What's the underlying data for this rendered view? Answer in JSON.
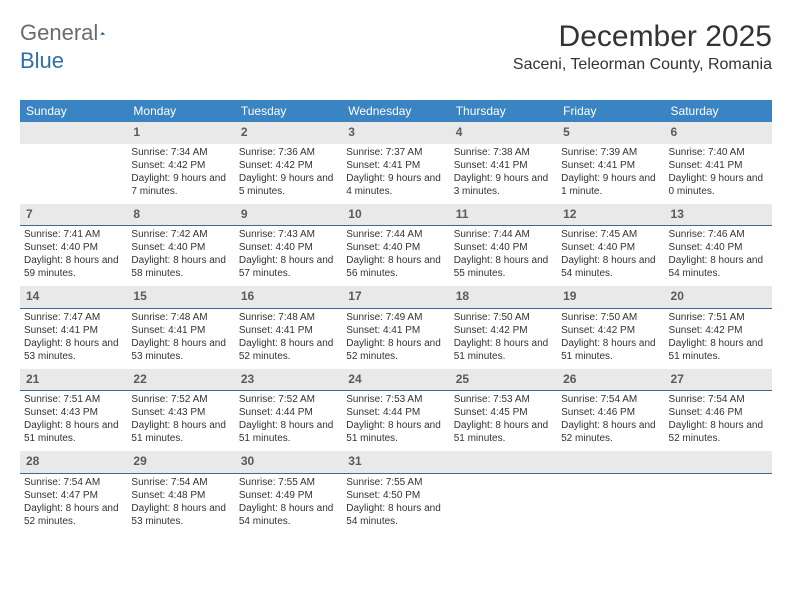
{
  "logo": {
    "text1": "General",
    "text2": "Blue"
  },
  "title": "December 2025",
  "subtitle": "Saceni, Teleorman County, Romania",
  "colors": {
    "header_bg": "#3a84c4",
    "header_fg": "#ffffff",
    "daynum_bg": "#e9e9e9",
    "rule": "#3a6a95",
    "text": "#333333",
    "logo_gray": "#6b6b6b",
    "logo_blue": "#2f6fa8",
    "page_bg": "#ffffff"
  },
  "days_of_week": [
    "Sunday",
    "Monday",
    "Tuesday",
    "Wednesday",
    "Thursday",
    "Friday",
    "Saturday"
  ],
  "weeks": [
    {
      "nums": [
        "",
        "1",
        "2",
        "3",
        "4",
        "5",
        "6"
      ],
      "cells": [
        null,
        {
          "sunrise": "7:34 AM",
          "sunset": "4:42 PM",
          "daylight": "9 hours and 7 minutes."
        },
        {
          "sunrise": "7:36 AM",
          "sunset": "4:42 PM",
          "daylight": "9 hours and 5 minutes."
        },
        {
          "sunrise": "7:37 AM",
          "sunset": "4:41 PM",
          "daylight": "9 hours and 4 minutes."
        },
        {
          "sunrise": "7:38 AM",
          "sunset": "4:41 PM",
          "daylight": "9 hours and 3 minutes."
        },
        {
          "sunrise": "7:39 AM",
          "sunset": "4:41 PM",
          "daylight": "9 hours and 1 minute."
        },
        {
          "sunrise": "7:40 AM",
          "sunset": "4:41 PM",
          "daylight": "9 hours and 0 minutes."
        }
      ]
    },
    {
      "nums": [
        "7",
        "8",
        "9",
        "10",
        "11",
        "12",
        "13"
      ],
      "cells": [
        {
          "sunrise": "7:41 AM",
          "sunset": "4:40 PM",
          "daylight": "8 hours and 59 minutes."
        },
        {
          "sunrise": "7:42 AM",
          "sunset": "4:40 PM",
          "daylight": "8 hours and 58 minutes."
        },
        {
          "sunrise": "7:43 AM",
          "sunset": "4:40 PM",
          "daylight": "8 hours and 57 minutes."
        },
        {
          "sunrise": "7:44 AM",
          "sunset": "4:40 PM",
          "daylight": "8 hours and 56 minutes."
        },
        {
          "sunrise": "7:44 AM",
          "sunset": "4:40 PM",
          "daylight": "8 hours and 55 minutes."
        },
        {
          "sunrise": "7:45 AM",
          "sunset": "4:40 PM",
          "daylight": "8 hours and 54 minutes."
        },
        {
          "sunrise": "7:46 AM",
          "sunset": "4:40 PM",
          "daylight": "8 hours and 54 minutes."
        }
      ]
    },
    {
      "nums": [
        "14",
        "15",
        "16",
        "17",
        "18",
        "19",
        "20"
      ],
      "cells": [
        {
          "sunrise": "7:47 AM",
          "sunset": "4:41 PM",
          "daylight": "8 hours and 53 minutes."
        },
        {
          "sunrise": "7:48 AM",
          "sunset": "4:41 PM",
          "daylight": "8 hours and 53 minutes."
        },
        {
          "sunrise": "7:48 AM",
          "sunset": "4:41 PM",
          "daylight": "8 hours and 52 minutes."
        },
        {
          "sunrise": "7:49 AM",
          "sunset": "4:41 PM",
          "daylight": "8 hours and 52 minutes."
        },
        {
          "sunrise": "7:50 AM",
          "sunset": "4:42 PM",
          "daylight": "8 hours and 51 minutes."
        },
        {
          "sunrise": "7:50 AM",
          "sunset": "4:42 PM",
          "daylight": "8 hours and 51 minutes."
        },
        {
          "sunrise": "7:51 AM",
          "sunset": "4:42 PM",
          "daylight": "8 hours and 51 minutes."
        }
      ]
    },
    {
      "nums": [
        "21",
        "22",
        "23",
        "24",
        "25",
        "26",
        "27"
      ],
      "cells": [
        {
          "sunrise": "7:51 AM",
          "sunset": "4:43 PM",
          "daylight": "8 hours and 51 minutes."
        },
        {
          "sunrise": "7:52 AM",
          "sunset": "4:43 PM",
          "daylight": "8 hours and 51 minutes."
        },
        {
          "sunrise": "7:52 AM",
          "sunset": "4:44 PM",
          "daylight": "8 hours and 51 minutes."
        },
        {
          "sunrise": "7:53 AM",
          "sunset": "4:44 PM",
          "daylight": "8 hours and 51 minutes."
        },
        {
          "sunrise": "7:53 AM",
          "sunset": "4:45 PM",
          "daylight": "8 hours and 51 minutes."
        },
        {
          "sunrise": "7:54 AM",
          "sunset": "4:46 PM",
          "daylight": "8 hours and 52 minutes."
        },
        {
          "sunrise": "7:54 AM",
          "sunset": "4:46 PM",
          "daylight": "8 hours and 52 minutes."
        }
      ]
    },
    {
      "nums": [
        "28",
        "29",
        "30",
        "31",
        "",
        "",
        ""
      ],
      "cells": [
        {
          "sunrise": "7:54 AM",
          "sunset": "4:47 PM",
          "daylight": "8 hours and 52 minutes."
        },
        {
          "sunrise": "7:54 AM",
          "sunset": "4:48 PM",
          "daylight": "8 hours and 53 minutes."
        },
        {
          "sunrise": "7:55 AM",
          "sunset": "4:49 PM",
          "daylight": "8 hours and 54 minutes."
        },
        {
          "sunrise": "7:55 AM",
          "sunset": "4:50 PM",
          "daylight": "8 hours and 54 minutes."
        },
        null,
        null,
        null
      ]
    }
  ],
  "labels": {
    "sunrise": "Sunrise:",
    "sunset": "Sunset:",
    "daylight": "Daylight:"
  }
}
